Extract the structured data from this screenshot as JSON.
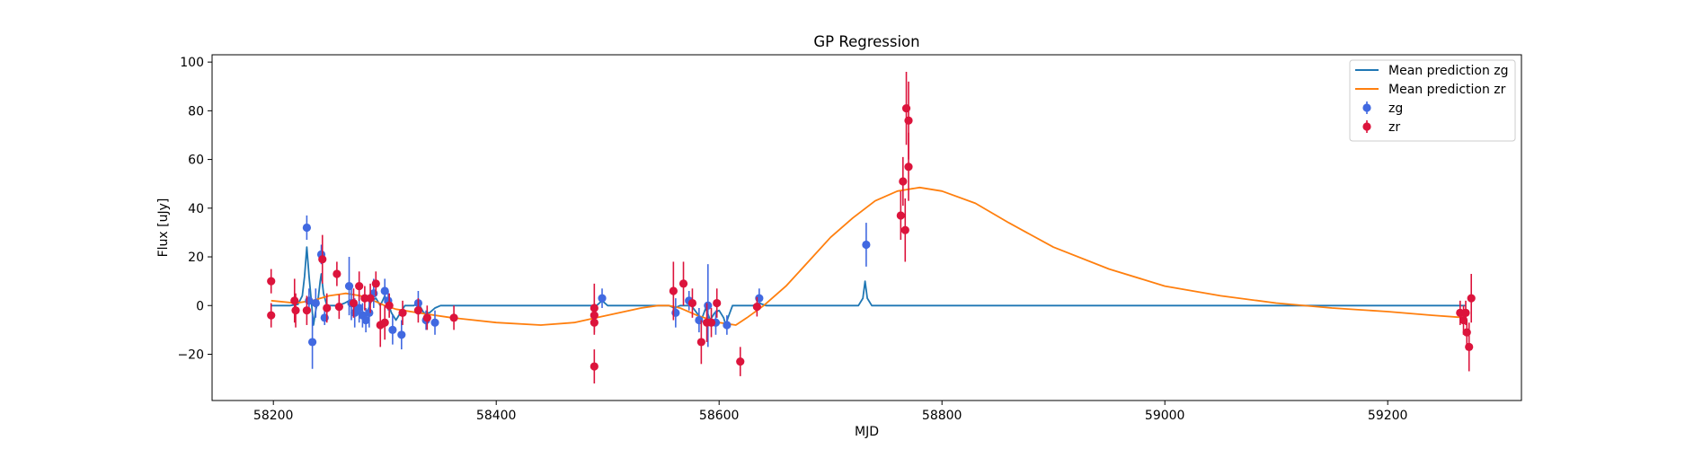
{
  "chart_data": {
    "type": "scatter",
    "title": "GP Regression",
    "xlabel": "MJD",
    "ylabel": "Flux [uJy]",
    "xlim": [
      58145,
      59320
    ],
    "ylim": [
      -39,
      103
    ],
    "xticks": [
      58200,
      58400,
      58600,
      58800,
      59000,
      59200
    ],
    "yticks": [
      -20,
      0,
      20,
      40,
      60,
      80,
      100
    ],
    "grid": false,
    "legend_position": "top-right",
    "colors": {
      "zg": "#4169e1",
      "zr": "#dc143c",
      "mean_zg": "#1f77b4",
      "mean_zr": "#ff7f0e"
    },
    "legend": [
      {
        "label": "Mean prediction zg",
        "kind": "line",
        "color": "#1f77b4"
      },
      {
        "label": "Mean prediction zr",
        "kind": "line",
        "color": "#ff7f0e"
      },
      {
        "label": "zg",
        "kind": "errorbar",
        "color": "#4169e1"
      },
      {
        "label": "zr",
        "kind": "errorbar",
        "color": "#dc143c"
      }
    ],
    "series": [
      {
        "name": "zg",
        "kind": "errorbar",
        "color": "#4169e1",
        "points": [
          {
            "x": 58230,
            "y": 32,
            "err": 5
          },
          {
            "x": 58232,
            "y": 2,
            "err": 5
          },
          {
            "x": 58235,
            "y": -15,
            "err": 11
          },
          {
            "x": 58238,
            "y": 1,
            "err": 6
          },
          {
            "x": 58243,
            "y": 21,
            "err": 4
          },
          {
            "x": 58246,
            "y": -5,
            "err": 3
          },
          {
            "x": 58268,
            "y": 8,
            "err": 12
          },
          {
            "x": 58270,
            "y": 1,
            "err": 7
          },
          {
            "x": 58273,
            "y": -3,
            "err": 6
          },
          {
            "x": 58277,
            "y": -1,
            "err": 6
          },
          {
            "x": 58280,
            "y": -4,
            "err": 5
          },
          {
            "x": 58283,
            "y": -6,
            "err": 5
          },
          {
            "x": 58286,
            "y": -3,
            "err": 6
          },
          {
            "x": 58290,
            "y": 5,
            "err": 6
          },
          {
            "x": 58300,
            "y": 6,
            "err": 5
          },
          {
            "x": 58303,
            "y": 2,
            "err": 4
          },
          {
            "x": 58307,
            "y": -10,
            "err": 6
          },
          {
            "x": 58315,
            "y": -12,
            "err": 6
          },
          {
            "x": 58330,
            "y": 1,
            "err": 5
          },
          {
            "x": 58337,
            "y": -6,
            "err": 4
          },
          {
            "x": 58345,
            "y": -7,
            "err": 5
          },
          {
            "x": 58495,
            "y": 3,
            "err": 4
          },
          {
            "x": 58561,
            "y": -3,
            "err": 6
          },
          {
            "x": 58573,
            "y": 2,
            "err": 4
          },
          {
            "x": 58582,
            "y": -6,
            "err": 5
          },
          {
            "x": 58590,
            "y": 0,
            "err": 17
          },
          {
            "x": 58597,
            "y": -7,
            "err": 5
          },
          {
            "x": 58607,
            "y": -8,
            "err": 4
          },
          {
            "x": 58636,
            "y": 3,
            "err": 4
          },
          {
            "x": 58732,
            "y": 25,
            "err": 9
          }
        ]
      },
      {
        "name": "zr",
        "kind": "errorbar",
        "color": "#dc143c",
        "points": [
          {
            "x": 58198,
            "y": 10,
            "err": 5
          },
          {
            "x": 58198,
            "y": -4,
            "err": 5
          },
          {
            "x": 58219,
            "y": 2,
            "err": 9
          },
          {
            "x": 58220,
            "y": -2,
            "err": 7
          },
          {
            "x": 58230,
            "y": -2,
            "err": 6
          },
          {
            "x": 58244,
            "y": 19,
            "err": 10
          },
          {
            "x": 58248,
            "y": -1,
            "err": 6
          },
          {
            "x": 58257,
            "y": 13,
            "err": 5
          },
          {
            "x": 58259,
            "y": -0.5,
            "err": 5
          },
          {
            "x": 58272,
            "y": 1,
            "err": 6
          },
          {
            "x": 58277,
            "y": 8,
            "err": 6
          },
          {
            "x": 58282,
            "y": 3,
            "err": 5
          },
          {
            "x": 58287,
            "y": 3,
            "err": 6
          },
          {
            "x": 58292,
            "y": 9,
            "err": 5
          },
          {
            "x": 58296,
            "y": -8,
            "err": 9
          },
          {
            "x": 58300,
            "y": -7,
            "err": 7
          },
          {
            "x": 58304,
            "y": 0,
            "err": 5
          },
          {
            "x": 58316,
            "y": -3,
            "err": 5
          },
          {
            "x": 58330,
            "y": -2,
            "err": 5
          },
          {
            "x": 58338,
            "y": -5,
            "err": 5
          },
          {
            "x": 58362,
            "y": -5,
            "err": 5
          },
          {
            "x": 58488,
            "y": -1,
            "err": 10
          },
          {
            "x": 58488,
            "y": -4,
            "err": 5
          },
          {
            "x": 58488,
            "y": -7,
            "err": 5
          },
          {
            "x": 58488,
            "y": -25,
            "err": 7
          },
          {
            "x": 58559,
            "y": 6,
            "err": 12
          },
          {
            "x": 58568,
            "y": 9,
            "err": 9
          },
          {
            "x": 58576,
            "y": 1,
            "err": 6
          },
          {
            "x": 58584,
            "y": -15,
            "err": 9
          },
          {
            "x": 58589,
            "y": -7,
            "err": 8
          },
          {
            "x": 58593,
            "y": -7,
            "err": 6
          },
          {
            "x": 58598,
            "y": 1,
            "err": 6
          },
          {
            "x": 58619,
            "y": -23,
            "err": 6
          },
          {
            "x": 58634,
            "y": -0.5,
            "err": 4
          },
          {
            "x": 58763,
            "y": 37,
            "err": 10
          },
          {
            "x": 58765,
            "y": 51,
            "err": 10
          },
          {
            "x": 58767,
            "y": 31,
            "err": 13
          },
          {
            "x": 58768,
            "y": 81,
            "err": 15
          },
          {
            "x": 58770,
            "y": 76,
            "err": 16
          },
          {
            "x": 58770,
            "y": 57,
            "err": 14
          },
          {
            "x": 59265,
            "y": -3,
            "err": 5
          },
          {
            "x": 59268,
            "y": -6,
            "err": 6
          },
          {
            "x": 59270,
            "y": -3,
            "err": 5
          },
          {
            "x": 59271,
            "y": -11,
            "err": 5
          },
          {
            "x": 59273,
            "y": -17,
            "err": 10
          },
          {
            "x": 59275,
            "y": 3,
            "err": 10
          }
        ]
      },
      {
        "name": "Mean prediction zg",
        "kind": "line",
        "color": "#1f77b4",
        "points": [
          [
            58198,
            0
          ],
          [
            58215,
            0
          ],
          [
            58222,
            0.5
          ],
          [
            58226,
            4
          ],
          [
            58228,
            12
          ],
          [
            58230,
            24
          ],
          [
            58232,
            12
          ],
          [
            58234,
            2
          ],
          [
            58236,
            -8
          ],
          [
            58238,
            -2
          ],
          [
            58240,
            2
          ],
          [
            58242,
            10
          ],
          [
            58243,
            13
          ],
          [
            58245,
            5
          ],
          [
            58248,
            0
          ],
          [
            58258,
            0
          ],
          [
            58264,
            1
          ],
          [
            58268,
            2
          ],
          [
            58272,
            0
          ],
          [
            58276,
            -2
          ],
          [
            58280,
            -5
          ],
          [
            58284,
            -3
          ],
          [
            58288,
            2
          ],
          [
            58292,
            3
          ],
          [
            58296,
            0
          ],
          [
            58300,
            4
          ],
          [
            58303,
            1
          ],
          [
            58306,
            -3
          ],
          [
            58310,
            -6
          ],
          [
            58314,
            -3
          ],
          [
            58318,
            0
          ],
          [
            58322,
            0
          ],
          [
            58326,
            0
          ],
          [
            58330,
            1
          ],
          [
            58335,
            -3
          ],
          [
            58340,
            -3
          ],
          [
            58345,
            -1
          ],
          [
            58350,
            0
          ],
          [
            58480,
            0
          ],
          [
            58490,
            0
          ],
          [
            58495,
            2
          ],
          [
            58500,
            0
          ],
          [
            58555,
            0
          ],
          [
            58560,
            -1
          ],
          [
            58565,
            0
          ],
          [
            58575,
            0
          ],
          [
            58580,
            -3
          ],
          [
            58584,
            -6
          ],
          [
            58588,
            -1
          ],
          [
            58592,
            -6
          ],
          [
            58596,
            -3
          ],
          [
            58600,
            -2
          ],
          [
            58604,
            -5
          ],
          [
            58606,
            -8
          ],
          [
            58608,
            -5
          ],
          [
            58612,
            0
          ],
          [
            58630,
            0
          ],
          [
            58636,
            1
          ],
          [
            58642,
            0
          ],
          [
            58725,
            0
          ],
          [
            58729,
            3
          ],
          [
            58731,
            10
          ],
          [
            58733,
            3
          ],
          [
            58737,
            0
          ],
          [
            59270,
            0
          ]
        ]
      },
      {
        "name": "Mean prediction zr",
        "kind": "line",
        "color": "#ff7f0e",
        "points": [
          [
            58198,
            2
          ],
          [
            58220,
            1
          ],
          [
            58235,
            2
          ],
          [
            58250,
            4
          ],
          [
            58265,
            5
          ],
          [
            58278,
            4
          ],
          [
            58290,
            2
          ],
          [
            58300,
            0
          ],
          [
            58310,
            -1.5
          ],
          [
            58330,
            -3
          ],
          [
            58360,
            -5
          ],
          [
            58400,
            -7
          ],
          [
            58440,
            -8
          ],
          [
            58470,
            -7
          ],
          [
            58490,
            -5
          ],
          [
            58510,
            -3
          ],
          [
            58530,
            -1
          ],
          [
            58545,
            0
          ],
          [
            58555,
            0
          ],
          [
            58565,
            -1
          ],
          [
            58580,
            -4
          ],
          [
            58600,
            -7
          ],
          [
            58615,
            -8
          ],
          [
            58625,
            -5
          ],
          [
            58640,
            0
          ],
          [
            58660,
            8
          ],
          [
            58680,
            18
          ],
          [
            58700,
            28
          ],
          [
            58720,
            36
          ],
          [
            58740,
            43
          ],
          [
            58760,
            47
          ],
          [
            58780,
            48.5
          ],
          [
            58800,
            47
          ],
          [
            58830,
            42
          ],
          [
            58860,
            34
          ],
          [
            58900,
            24
          ],
          [
            58950,
            15
          ],
          [
            59000,
            8
          ],
          [
            59050,
            4
          ],
          [
            59100,
            1
          ],
          [
            59150,
            -1
          ],
          [
            59200,
            -2.5
          ],
          [
            59240,
            -4
          ],
          [
            59270,
            -5
          ]
        ]
      }
    ]
  }
}
